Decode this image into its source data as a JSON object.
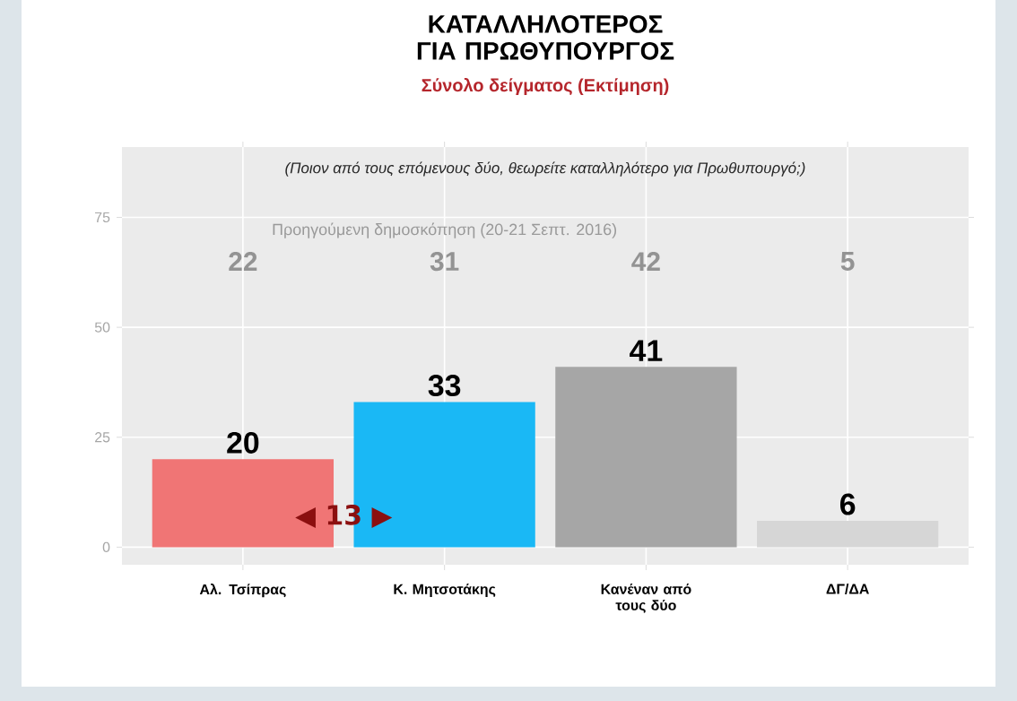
{
  "chart_data": {
    "type": "bar",
    "title": "ΚΑΤΑΛΛΗΛΟΤΕΡΟΣ ΓΙΑ ΠΡΩΘΥΠΟΥΡΓΟΣ",
    "subtitle": "Σύνολο δείγματος (Εκτίμηση)",
    "categories": [
      "Αλ. Τσίπρας",
      "Κ. Μητσοτάκης",
      "Κανέναν από τους δύο",
      "ΔΓ/ΔΑ"
    ],
    "values": [
      20,
      33,
      41,
      6
    ],
    "colors": [
      "#f07575",
      "#1ab8f5",
      "#a6a6a6",
      "#d6d6d6"
    ],
    "ylim": [
      -4,
      91
    ],
    "yticks": [
      0,
      25,
      50,
      75
    ],
    "grid": true,
    "data_labels": true,
    "annotations": [
      "(Ποιον από τους επόμενους δύο, θεωρείτε καταλληλότερο για Πρωθυπουργό;)",
      "Προηγούμενη δημοσκόπηση (20-21 Σεπτ. 2016)",
      "◀ 13 ▶",
      "22",
      "31",
      "42",
      "5"
    ]
  }
}
